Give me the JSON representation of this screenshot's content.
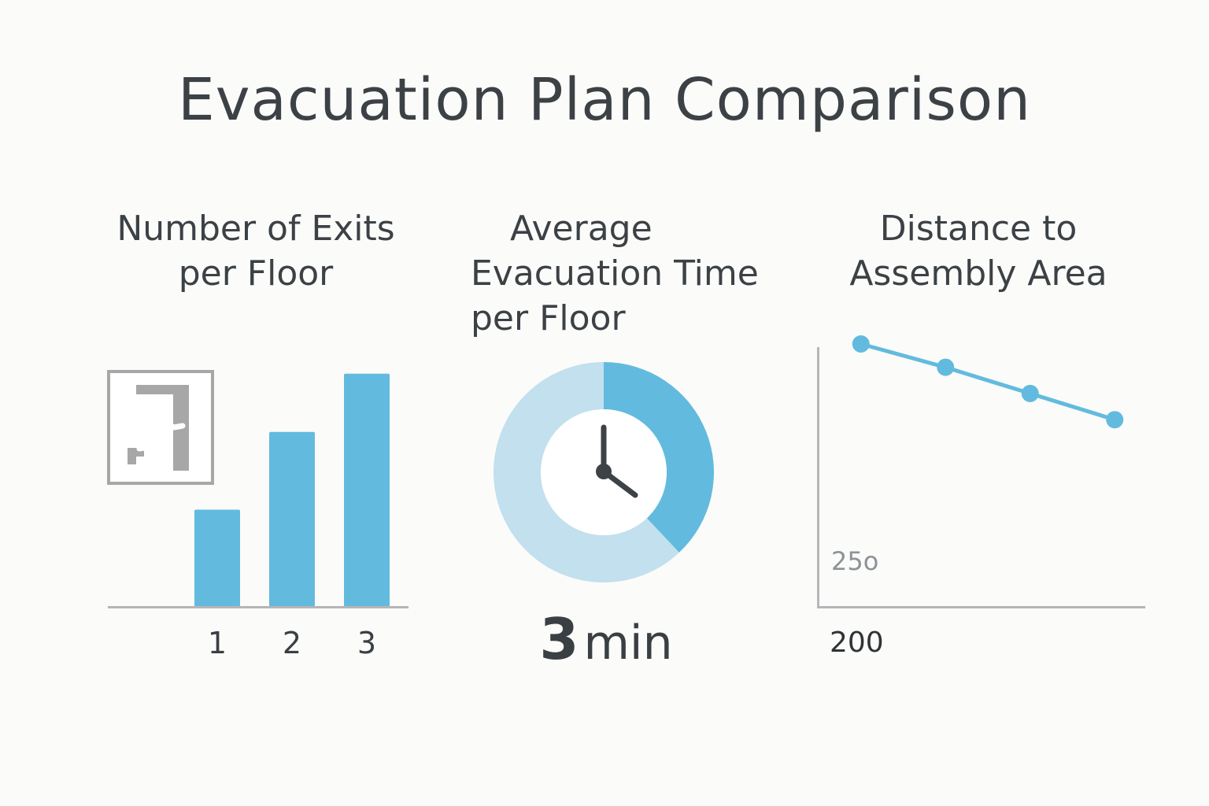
{
  "title": "Evacuation Plan Comparison",
  "colors": {
    "bar": "#62bbde",
    "donut_light": "#c2e0ee",
    "donut_dark": "#62bbde",
    "axis": "#b4b6b8",
    "text": "#3a3f44",
    "icon_gray": "#a7a7a7"
  },
  "chart_data": [
    {
      "type": "bar",
      "title": "Number of Exits per Floor",
      "title_lines": [
        "Number of Exits",
        "per Floor"
      ],
      "icon": "emergency-exit-icon",
      "categories": [
        "1",
        "2",
        "3"
      ],
      "values": [
        1,
        1.8,
        2.4
      ],
      "ylim": [
        0,
        2.6
      ],
      "xlabel": "",
      "ylabel": "",
      "grid": false
    },
    {
      "type": "pie",
      "variant": "donut",
      "title": "Average Evacuation Time per Floor",
      "title_lines": [
        "Average",
        "Evacuation Time",
        "per Floor"
      ],
      "icon": "clock-icon",
      "slices": [
        {
          "name": "highlighted",
          "value": 38
        },
        {
          "name": "remaining",
          "value": 62
        }
      ],
      "value_label": "3",
      "unit_label": "min"
    },
    {
      "type": "line",
      "title": "Distance to Assembly Area",
      "title_lines": [
        "Distance to",
        "Assembly Area"
      ],
      "x": [
        1,
        2,
        3,
        4
      ],
      "y": [
        290,
        282,
        273,
        264
      ],
      "ylim": [
        200,
        300
      ],
      "xlim": [
        0.5,
        4.5
      ],
      "axis_labels": [
        "25o",
        "200"
      ],
      "grid": false
    }
  ]
}
